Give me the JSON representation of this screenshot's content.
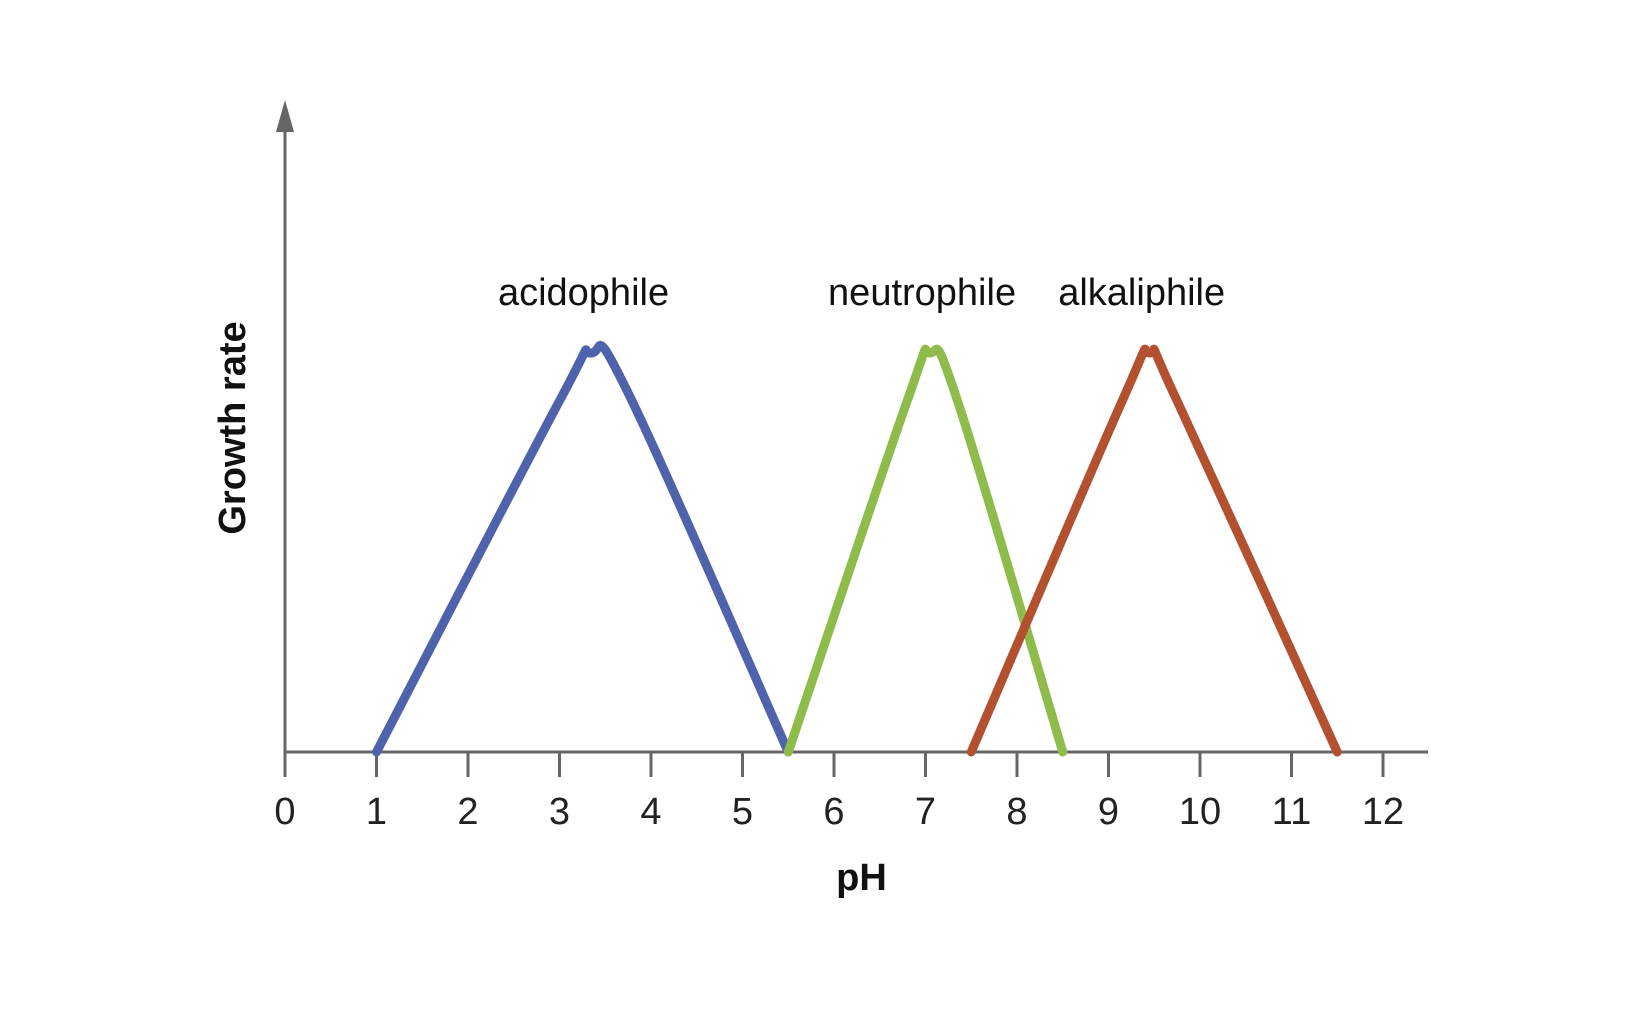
{
  "chart_data": {
    "type": "line",
    "title": "",
    "xlabel": "pH",
    "ylabel": "Growth rate",
    "xlim": [
      0,
      12.5
    ],
    "ylim": [
      0,
      1.25
    ],
    "x_ticks": [
      0,
      1,
      2,
      3,
      4,
      5,
      6,
      7,
      8,
      9,
      10,
      11,
      12
    ],
    "y_ticks": [],
    "grid": false,
    "legend": "none",
    "series": [
      {
        "name": "acidophile",
        "color": "#4f63ad",
        "points": [
          [
            1,
            0
          ],
          [
            3.0,
            0.88
          ],
          [
            3.35,
            1.0
          ],
          [
            3.75,
            0.9
          ],
          [
            5.5,
            0
          ]
        ]
      },
      {
        "name": "neutrophile",
        "color": "#8fbb4a",
        "points": [
          [
            5.5,
            0
          ],
          [
            6.8,
            0.88
          ],
          [
            7.05,
            1.0
          ],
          [
            7.35,
            0.88
          ],
          [
            8.5,
            0
          ]
        ]
      },
      {
        "name": "alkaliphile",
        "color": "#b2502f",
        "points": [
          [
            7.5,
            0
          ],
          [
            9.15,
            0.88
          ],
          [
            9.45,
            1.0
          ],
          [
            9.75,
            0.88
          ],
          [
            11.5,
            0
          ]
        ]
      }
    ]
  }
}
